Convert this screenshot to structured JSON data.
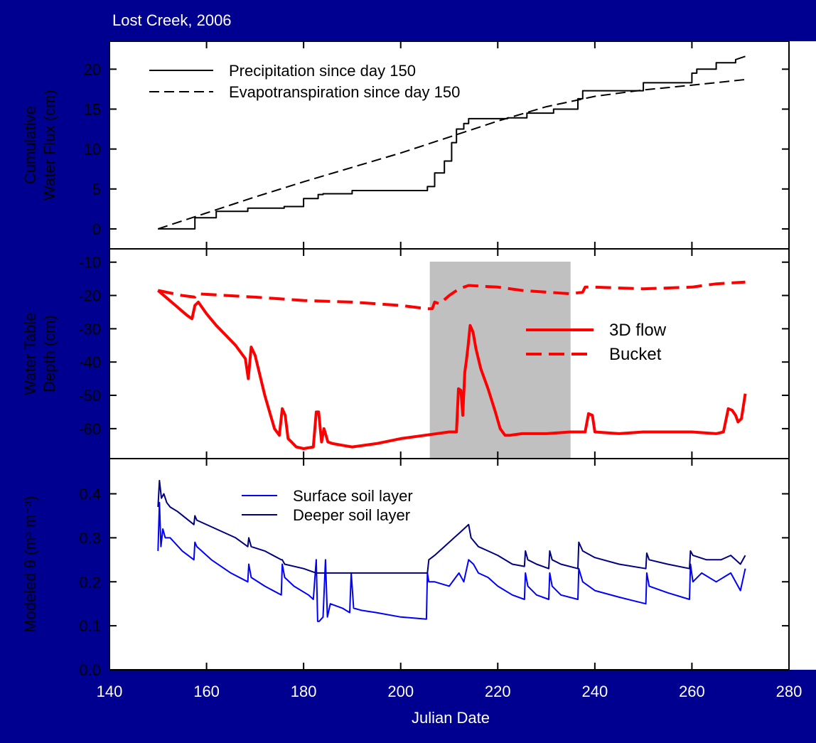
{
  "title": "Lost Creek, 2006",
  "colors": {
    "background": "#000090",
    "plot_area": "#ffffff",
    "precip": "#000000",
    "et": "#000000",
    "flow3d": "#ff0000",
    "bucket": "#ff0000",
    "surface": "#0000ff",
    "deeper": "#000080",
    "shade": "#c0c0c0"
  },
  "chart_data": [
    {
      "type": "line",
      "title": "Lost Creek, 2006",
      "xlabel": "Julian Date",
      "ylabel": [
        "Cumulative",
        "Water Flux (cm)"
      ],
      "xlim": [
        140,
        280
      ],
      "ylim": [
        -2.5,
        23.5
      ],
      "yticks": [
        0,
        5,
        10,
        15,
        20
      ],
      "legend_position": "top-left",
      "series": [
        {
          "name": "Precipitation since day 150",
          "style": "solid",
          "x": [
            150,
            157.6,
            157.6,
            162,
            162,
            168.5,
            168.5,
            176,
            176,
            180,
            180,
            183,
            183,
            184,
            184,
            190,
            190,
            205.5,
            205.5,
            207,
            207,
            209,
            209,
            210.5,
            210.5,
            211.5,
            211.5,
            213,
            213,
            214,
            214,
            215,
            215,
            222,
            222,
            226,
            226,
            231.5,
            231.5,
            236.5,
            236.5,
            237.5,
            237.5,
            250,
            250,
            260,
            260,
            261,
            261,
            265,
            265,
            269,
            269,
            271
          ],
          "y": [
            0,
            0,
            1.4,
            1.4,
            2.2,
            2.2,
            2.6,
            2.6,
            2.8,
            2.8,
            3.8,
            3.8,
            4.3,
            4.3,
            4.4,
            4.4,
            4.8,
            4.8,
            5.3,
            5.3,
            7,
            7,
            8.5,
            8.5,
            10.8,
            10.8,
            12.5,
            12.5,
            13.2,
            13.2,
            13.8,
            13.8,
            13.8,
            13.8,
            13.9,
            13.9,
            14.5,
            14.5,
            15,
            15,
            16.3,
            16.3,
            17.3,
            17.3,
            18.3,
            18.3,
            19.5,
            19.5,
            20,
            20,
            20.8,
            20.8,
            21.2,
            21.6
          ]
        },
        {
          "name": "Evapotranspiration since day 150",
          "style": "dashed",
          "x": [
            150,
            160,
            170,
            180,
            190,
            200,
            210,
            220,
            230,
            240,
            250,
            260,
            271
          ],
          "y": [
            0,
            2,
            4,
            5.9,
            7.7,
            9.5,
            11.5,
            13.5,
            15.3,
            16.6,
            17.4,
            18,
            18.7
          ]
        }
      ]
    },
    {
      "type": "line",
      "xlabel": "Julian Date",
      "ylabel": [
        "Water Table",
        "Depth (cm)"
      ],
      "xlim": [
        140,
        280
      ],
      "ylim": [
        -69,
        -6
      ],
      "yticks": [
        -10,
        -20,
        -30,
        -40,
        -50,
        -60
      ],
      "shaded_region": [
        206,
        235
      ],
      "legend_position": "right",
      "series": [
        {
          "name": "3D flow",
          "style": "solid",
          "x": [
            150,
            152,
            154,
            156,
            157,
            157.6,
            158.3,
            160,
            162,
            164,
            166,
            168,
            168.6,
            169.2,
            170,
            171,
            172,
            173,
            174,
            175,
            175.6,
            176.2,
            176.8,
            177.5,
            178.5,
            180,
            182,
            182.6,
            183.1,
            183.7,
            184.2,
            184.6,
            185,
            186,
            188,
            190,
            195,
            200,
            205,
            210,
            211.5,
            211.9,
            212.4,
            212.8,
            213.2,
            213.5,
            213.9,
            214.3,
            214.9,
            215.5,
            216.5,
            218,
            219.5,
            220.5,
            221.5,
            222.5,
            225,
            230,
            235,
            238,
            238.7,
            239.5,
            240,
            245,
            250,
            255,
            260,
            265,
            266.5,
            267.5,
            268.3,
            269,
            269.5,
            270.2,
            271
          ],
          "y": [
            -18.5,
            -21,
            -23.5,
            -26,
            -27,
            -23,
            -22,
            -25.5,
            -29,
            -32,
            -35,
            -39,
            -45,
            -35.5,
            -38,
            -44,
            -50,
            -55,
            -60,
            -62,
            -54,
            -56,
            -63,
            -64,
            -65.5,
            -66,
            -65.5,
            -55,
            -55,
            -64,
            -60,
            -62,
            -64,
            -64.5,
            -65,
            -65.5,
            -64.5,
            -63,
            -62,
            -61,
            -61,
            -48,
            -48.5,
            -56,
            -43,
            -40,
            -35,
            -29,
            -31,
            -36,
            -42,
            -48,
            -55,
            -60,
            -62,
            -62,
            -61.5,
            -61.5,
            -61,
            -61,
            -55.5,
            -56,
            -61,
            -61.5,
            -61,
            -61,
            -61,
            -61.5,
            -61,
            -54,
            -54.5,
            -56,
            -58,
            -57,
            -49.5
          ]
        },
        {
          "name": "Bucket",
          "style": "dashed",
          "x": [
            150,
            155,
            157.6,
            158,
            170,
            180,
            190,
            200,
            205.5,
            206.5,
            207,
            208,
            210,
            212,
            214,
            220,
            225,
            230,
            235,
            237.5,
            238,
            240,
            250,
            260,
            265,
            271
          ],
          "y": [
            -18.5,
            -20,
            -20.5,
            -19.5,
            -20.5,
            -21.5,
            -22,
            -23,
            -24,
            -24,
            -22,
            -22.5,
            -20,
            -18,
            -17,
            -17.5,
            -18.5,
            -19,
            -19.5,
            -19,
            -17.5,
            -17.5,
            -18,
            -17.5,
            -16.5,
            -16
          ]
        }
      ]
    },
    {
      "type": "line",
      "xlabel": "Julian Date",
      "ylabel": "Modeled θ (m³ m⁻³)",
      "xlim": [
        140,
        280
      ],
      "ylim": [
        0.0,
        0.48
      ],
      "yticks": [
        "0.0",
        "0.1",
        "0.2",
        "0.3",
        "0.4"
      ],
      "xticks": [
        140,
        160,
        180,
        200,
        220,
        240,
        260,
        280
      ],
      "legend_position": "top-left",
      "series": [
        {
          "name": "Surface soil layer",
          "style": "solid",
          "x": [
            150,
            150.3,
            150.6,
            151,
            151.5,
            152.5,
            155,
            157.4,
            157.6,
            158,
            161,
            165,
            168.5,
            168.7,
            169.2,
            172,
            175.4,
            175.6,
            176.1,
            178,
            181,
            182,
            182.6,
            182.9,
            183.2,
            184,
            184.5,
            184.9,
            185.5,
            188,
            189.5,
            189.8,
            190.3,
            192,
            195,
            200,
            205.3,
            205.5,
            205.8,
            207,
            210,
            212,
            213,
            214,
            215,
            216,
            218,
            220,
            223,
            225.5,
            225.7,
            226.2,
            228,
            230.5,
            230.7,
            231.2,
            233,
            236.5,
            236.7,
            237.5,
            240,
            245,
            250.5,
            250.7,
            251.2,
            255,
            259.5,
            259.7,
            260.2,
            262,
            265,
            268,
            270,
            271
          ],
          "y": [
            0.27,
            0.38,
            0.28,
            0.32,
            0.3,
            0.3,
            0.27,
            0.25,
            0.29,
            0.28,
            0.25,
            0.22,
            0.2,
            0.24,
            0.21,
            0.19,
            0.17,
            0.24,
            0.21,
            0.19,
            0.17,
            0.16,
            0.25,
            0.11,
            0.11,
            0.12,
            0.25,
            0.12,
            0.15,
            0.14,
            0.13,
            0.22,
            0.14,
            0.135,
            0.13,
            0.12,
            0.115,
            0.22,
            0.2,
            0.2,
            0.19,
            0.22,
            0.2,
            0.25,
            0.24,
            0.22,
            0.21,
            0.19,
            0.17,
            0.16,
            0.22,
            0.19,
            0.17,
            0.16,
            0.22,
            0.19,
            0.17,
            0.16,
            0.23,
            0.2,
            0.18,
            0.165,
            0.15,
            0.22,
            0.19,
            0.175,
            0.16,
            0.24,
            0.2,
            0.22,
            0.2,
            0.22,
            0.18,
            0.23
          ]
        },
        {
          "name": "Deeper soil layer",
          "style": "solid",
          "x": [
            150,
            150.3,
            150.7,
            151.2,
            151.8,
            152.5,
            154,
            157.4,
            157.6,
            158,
            162,
            166,
            168.5,
            168.7,
            169.2,
            172,
            175.4,
            175.6,
            176.1,
            180,
            182.6,
            183,
            184.5,
            185,
            189.5,
            190,
            195,
            200,
            205.5,
            205.8,
            207,
            209,
            211,
            212,
            213,
            214,
            214.5,
            216,
            218,
            220,
            223,
            225.5,
            225.7,
            226.2,
            228,
            230.5,
            230.7,
            231.2,
            233,
            236.5,
            236.7,
            237.5,
            240,
            245,
            250.5,
            250.7,
            251.2,
            255,
            259.5,
            259.7,
            260.2,
            263,
            266,
            268,
            270,
            271
          ],
          "y": [
            0.37,
            0.43,
            0.39,
            0.4,
            0.38,
            0.37,
            0.36,
            0.33,
            0.35,
            0.34,
            0.32,
            0.3,
            0.28,
            0.3,
            0.28,
            0.27,
            0.25,
            0.25,
            0.24,
            0.23,
            0.22,
            0.22,
            0.22,
            0.22,
            0.22,
            0.22,
            0.22,
            0.22,
            0.22,
            0.25,
            0.26,
            0.28,
            0.3,
            0.31,
            0.32,
            0.33,
            0.3,
            0.28,
            0.27,
            0.26,
            0.24,
            0.235,
            0.27,
            0.25,
            0.24,
            0.23,
            0.27,
            0.25,
            0.24,
            0.23,
            0.29,
            0.27,
            0.255,
            0.24,
            0.23,
            0.265,
            0.25,
            0.24,
            0.23,
            0.27,
            0.26,
            0.25,
            0.25,
            0.26,
            0.24,
            0.26
          ]
        }
      ]
    }
  ]
}
